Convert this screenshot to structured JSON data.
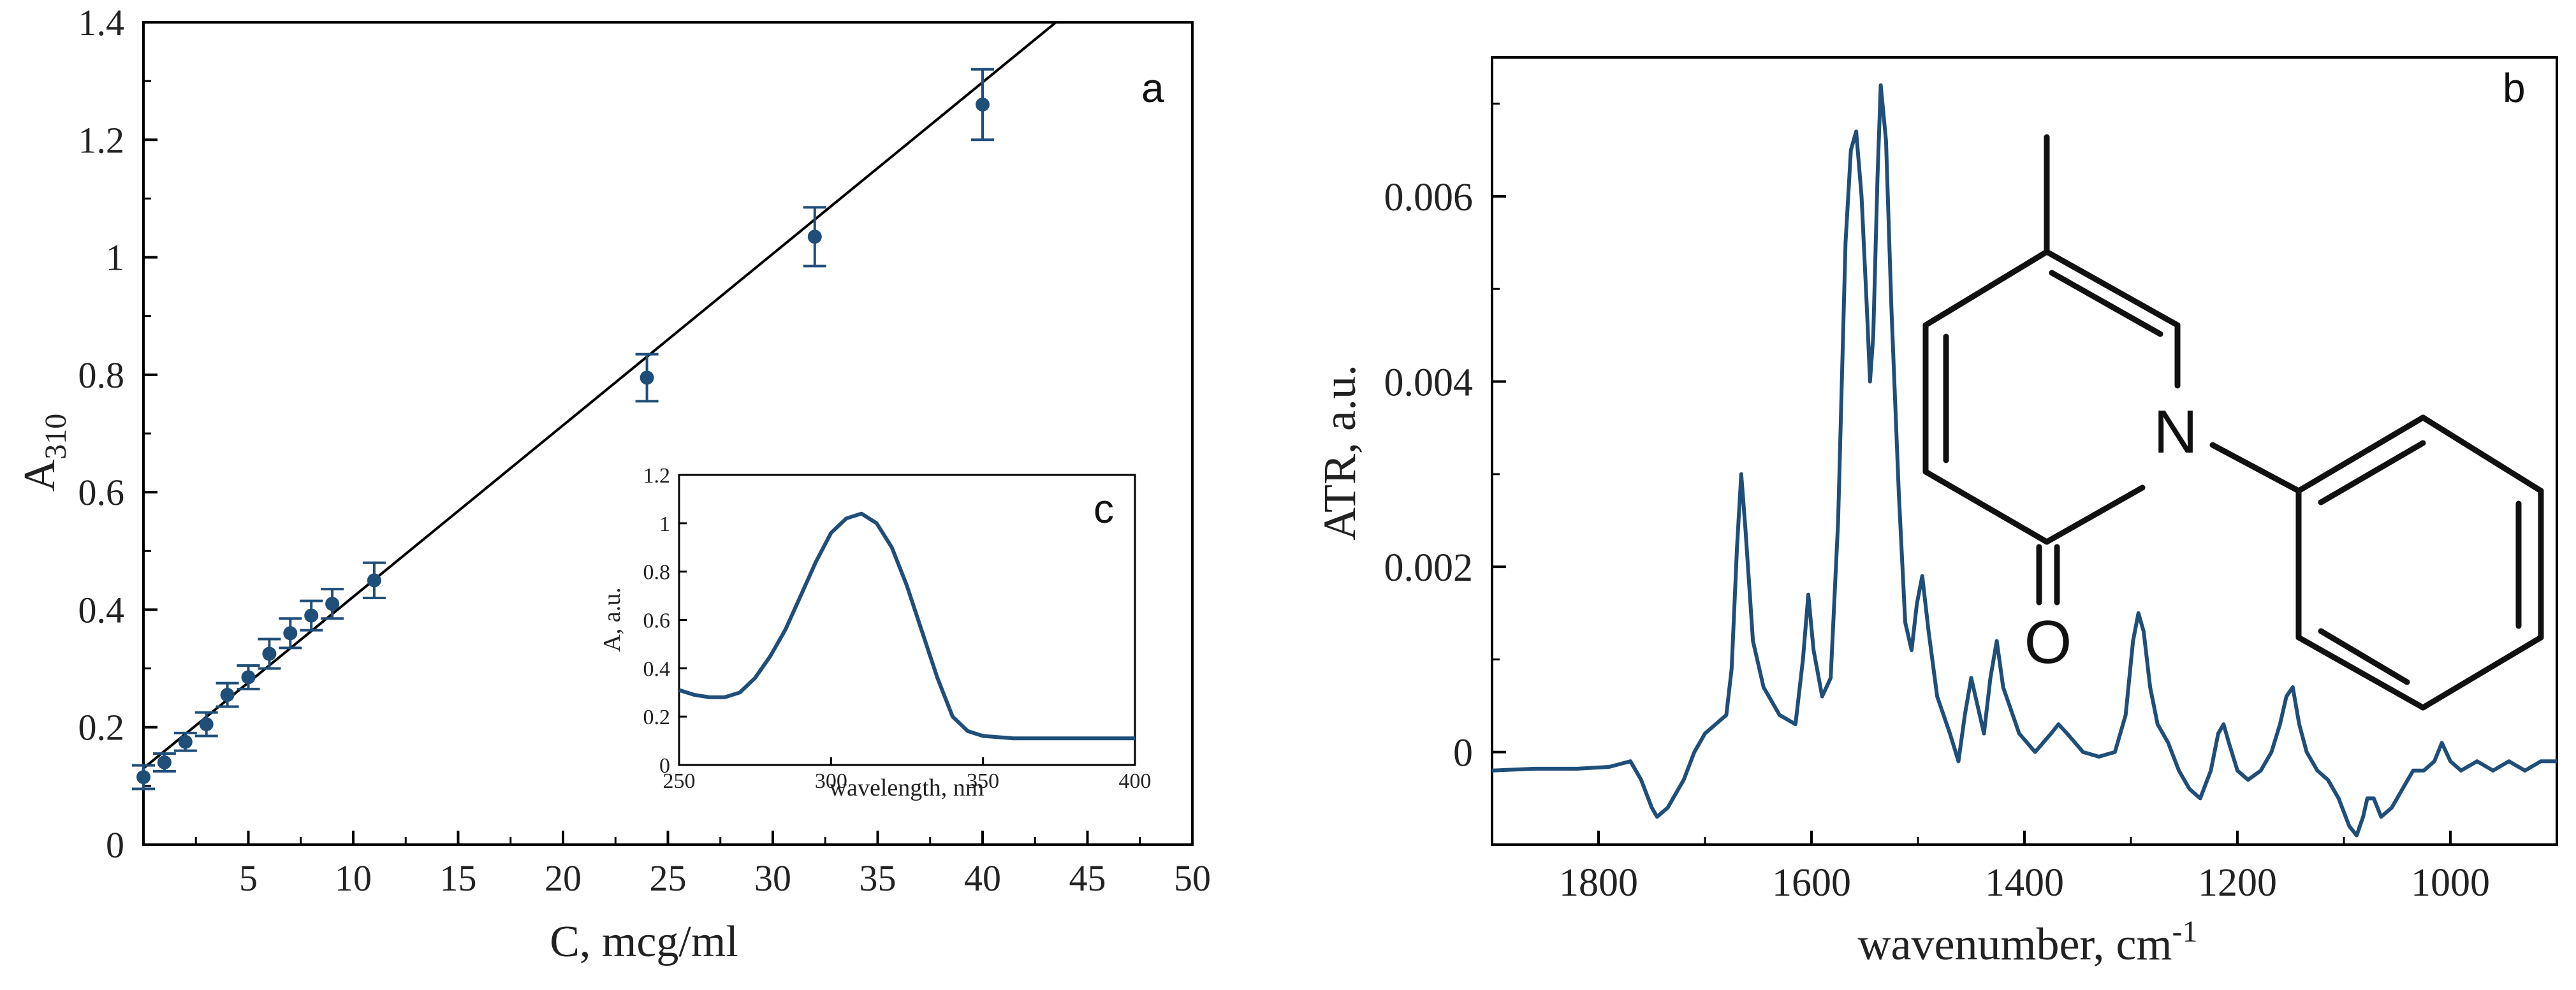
{
  "colors": {
    "series": "#1f4e79",
    "fit_line": "#000000",
    "axis": "#000000"
  },
  "chart_data": [
    {
      "id": "a",
      "type": "scatter",
      "panel_label": "a",
      "xlabel": "C, mcg/ml",
      "ylabel_main": "A",
      "ylabel_sub": "310",
      "xlim": [
        0,
        50
      ],
      "ylim": [
        0,
        1.4
      ],
      "x_ticks": [
        5,
        10,
        15,
        20,
        25,
        30,
        35,
        40,
        45,
        50
      ],
      "x_tick_labels": [
        "5",
        "10",
        "15",
        "20",
        "25",
        "30",
        "35",
        "40",
        "45",
        "50"
      ],
      "y_ticks": [
        0,
        0.2,
        0.4,
        0.6,
        0.8,
        1.0,
        1.2,
        1.4
      ],
      "y_tick_labels": [
        "0",
        "0.2",
        "0.4",
        "0.6",
        "0.8",
        "1",
        "1.2",
        "1.4"
      ],
      "points": [
        {
          "x": 0,
          "y": 0.115,
          "err": 0.02
        },
        {
          "x": 1,
          "y": 0.14,
          "err": 0.015
        },
        {
          "x": 2,
          "y": 0.175,
          "err": 0.015
        },
        {
          "x": 3,
          "y": 0.205,
          "err": 0.02
        },
        {
          "x": 4,
          "y": 0.255,
          "err": 0.02
        },
        {
          "x": 5,
          "y": 0.285,
          "err": 0.02
        },
        {
          "x": 6,
          "y": 0.325,
          "err": 0.025
        },
        {
          "x": 7,
          "y": 0.36,
          "err": 0.025
        },
        {
          "x": 8,
          "y": 0.39,
          "err": 0.025
        },
        {
          "x": 9,
          "y": 0.41,
          "err": 0.025
        },
        {
          "x": 11,
          "y": 0.45,
          "err": 0.03
        },
        {
          "x": 24,
          "y": 0.795,
          "err": 0.04
        },
        {
          "x": 32,
          "y": 1.035,
          "err": 0.05
        },
        {
          "x": 40,
          "y": 1.26,
          "err": 0.06
        }
      ],
      "fit": {
        "x0": 0,
        "y0": 0.13,
        "x1": 43.5,
        "y1": 1.4
      }
    },
    {
      "id": "c",
      "type": "line",
      "panel_label": "c",
      "xlabel": "wavelength, nm",
      "ylabel": "A, a.u.",
      "xlim": [
        250,
        400
      ],
      "ylim": [
        0,
        1.2
      ],
      "x_ticks": [
        250,
        300,
        350,
        400
      ],
      "x_tick_labels": [
        "250",
        "300",
        "350",
        "400"
      ],
      "y_ticks": [
        0,
        0.2,
        0.4,
        0.6,
        0.8,
        1.0,
        1.2
      ],
      "y_tick_labels": [
        "0",
        "0.2",
        "0.4",
        "0.6",
        "0.8",
        "1",
        "1.2"
      ],
      "x": [
        250,
        255,
        260,
        265,
        270,
        275,
        280,
        285,
        290,
        295,
        300,
        305,
        310,
        315,
        320,
        325,
        330,
        335,
        340,
        345,
        350,
        355,
        360,
        370,
        380,
        390,
        400
      ],
      "y": [
        0.31,
        0.29,
        0.28,
        0.28,
        0.3,
        0.36,
        0.45,
        0.56,
        0.7,
        0.84,
        0.96,
        1.02,
        1.04,
        1.0,
        0.9,
        0.74,
        0.55,
        0.36,
        0.2,
        0.14,
        0.12,
        0.115,
        0.11,
        0.11,
        0.11,
        0.11,
        0.11
      ]
    },
    {
      "id": "b",
      "type": "line",
      "panel_label": "b",
      "xlabel_main": "wavenumber, cm",
      "xlabel_sup": "-1",
      "ylabel": "ATR, a.u.",
      "xlim": [
        1900,
        900
      ],
      "ylim": [
        -0.001,
        0.0075
      ],
      "x_ticks": [
        1800,
        1600,
        1400,
        1200,
        1000
      ],
      "x_tick_labels": [
        "1800",
        "1600",
        "1400",
        "1200",
        "1000"
      ],
      "y_ticks": [
        0,
        0.002,
        0.004,
        0.006
      ],
      "y_tick_labels": [
        "0",
        "0.002",
        "0.004",
        "0.006"
      ],
      "x": [
        1900,
        1860,
        1820,
        1790,
        1770,
        1760,
        1750,
        1745,
        1735,
        1720,
        1710,
        1700,
        1690,
        1680,
        1675,
        1670,
        1666,
        1662,
        1655,
        1645,
        1630,
        1615,
        1608,
        1603,
        1598,
        1590,
        1582,
        1575,
        1568,
        1563,
        1558,
        1553,
        1548,
        1545,
        1542,
        1538,
        1535,
        1530,
        1525,
        1518,
        1512,
        1506,
        1501,
        1496,
        1490,
        1482,
        1470,
        1462,
        1456,
        1450,
        1444,
        1438,
        1432,
        1426,
        1420,
        1405,
        1390,
        1375,
        1368,
        1360,
        1345,
        1330,
        1315,
        1305,
        1298,
        1293,
        1288,
        1282,
        1275,
        1265,
        1255,
        1245,
        1235,
        1225,
        1218,
        1213,
        1208,
        1200,
        1190,
        1178,
        1168,
        1160,
        1154,
        1148,
        1142,
        1135,
        1125,
        1115,
        1105,
        1095,
        1088,
        1082,
        1078,
        1072,
        1065,
        1055,
        1045,
        1035,
        1025,
        1015,
        1008,
        1000,
        990,
        975,
        960,
        945,
        930,
        915,
        900
      ],
      "y": [
        -0.0002,
        -0.00018,
        -0.00018,
        -0.00016,
        -0.0001,
        -0.0003,
        -0.0006,
        -0.0007,
        -0.0006,
        -0.0003,
        0.0,
        0.0002,
        0.0003,
        0.0004,
        0.0009,
        0.0022,
        0.003,
        0.0024,
        0.0012,
        0.0007,
        0.0004,
        0.0003,
        0.001,
        0.0017,
        0.0011,
        0.0006,
        0.0008,
        0.0025,
        0.0055,
        0.0065,
        0.0067,
        0.006,
        0.0048,
        0.004,
        0.0045,
        0.0062,
        0.0072,
        0.0066,
        0.0048,
        0.0028,
        0.0014,
        0.0011,
        0.0016,
        0.0019,
        0.0013,
        0.0006,
        0.0002,
        -0.0001,
        0.0004,
        0.0008,
        0.0005,
        0.0002,
        0.0008,
        0.0012,
        0.0007,
        0.0002,
        0.0,
        0.0002,
        0.0003,
        0.0002,
        0.0,
        -5e-05,
        0.0,
        0.0004,
        0.0012,
        0.0015,
        0.0013,
        0.0007,
        0.0003,
        0.0001,
        -0.0002,
        -0.0004,
        -0.0005,
        -0.0002,
        0.0002,
        0.0003,
        0.0001,
        -0.0002,
        -0.0003,
        -0.0002,
        0.0,
        0.0003,
        0.0006,
        0.0007,
        0.0003,
        0.0,
        -0.0002,
        -0.0003,
        -0.0005,
        -0.0008,
        -0.0009,
        -0.0007,
        -0.0005,
        -0.0005,
        -0.0007,
        -0.0006,
        -0.0004,
        -0.0002,
        -0.0002,
        -0.0001,
        0.0001,
        -0.0001,
        -0.0002,
        -0.0001,
        -0.0002,
        -0.0001,
        -0.0002,
        -0.0001,
        -0.0001
      ]
    }
  ],
  "structure": {
    "atoms": {
      "nitrogen": "N",
      "oxygen": "O"
    }
  }
}
